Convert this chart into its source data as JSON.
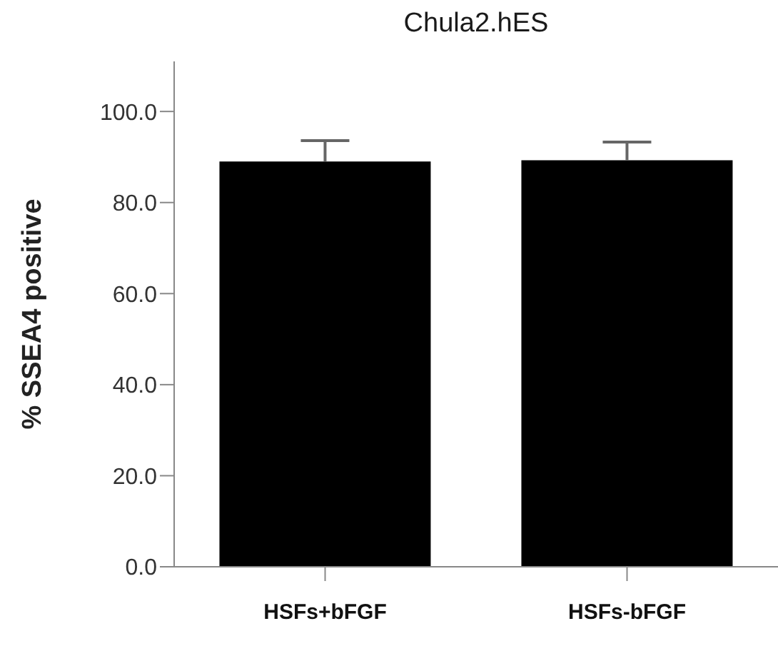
{
  "chart_data": {
    "type": "bar",
    "title": "Chula2.hES",
    "ylabel": "% SSEA4 positive",
    "categories": [
      "HSFs+bFGF",
      "HSFs-bFGF"
    ],
    "values": [
      89.0,
      89.3
    ],
    "errors": [
      [
        89.0,
        93.6
      ],
      [
        89.3,
        93.3
      ]
    ],
    "color": "#000000",
    "ylim": [
      0,
      111
    ],
    "yticks": [
      {
        "value": 0,
        "label": "0.0"
      },
      {
        "value": 20,
        "label": "20.0"
      },
      {
        "value": 40,
        "label": "40.0"
      },
      {
        "value": 60,
        "label": "60.0"
      },
      {
        "value": 80,
        "label": "80.0"
      },
      {
        "value": 100,
        "label": "100.0"
      }
    ],
    "grid": false,
    "legend": false
  }
}
